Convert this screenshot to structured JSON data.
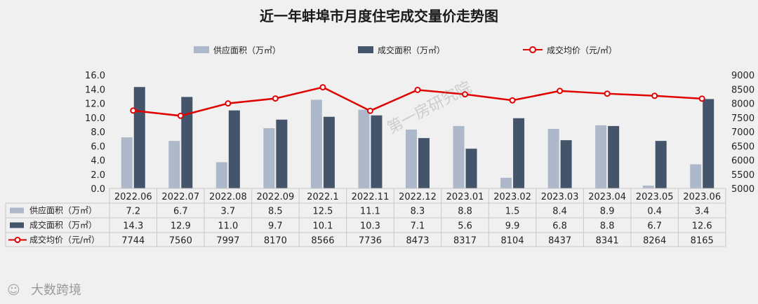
{
  "chart_data": {
    "type": "bar+line",
    "title": "近一年蚌埠市月度住宅成交量价走势图",
    "categories": [
      "2022.06",
      "2022.07",
      "2022.08",
      "2022.09",
      "2022.1",
      "2022.11",
      "2022.12",
      "2023.01",
      "2023.02",
      "2023.03",
      "2023.04",
      "2023.05",
      "2023.06"
    ],
    "series": [
      {
        "name": "供应面积（万㎡）",
        "kind": "bar",
        "axis": "left",
        "color": "#adb9ca",
        "values": [
          7.2,
          6.7,
          3.7,
          8.5,
          12.5,
          11.1,
          8.3,
          8.8,
          1.5,
          8.4,
          8.9,
          0.4,
          3.4
        ],
        "labels": [
          "7.2",
          "6.7",
          "3.7",
          "8.5",
          "12.5",
          "11.1",
          "8.3",
          "8.8",
          "1.5",
          "8.4",
          "8.9",
          "0.4",
          "3.4"
        ]
      },
      {
        "name": "成交面积（万㎡）",
        "kind": "bar",
        "axis": "left",
        "color": "#44546a",
        "values": [
          14.3,
          12.9,
          11.0,
          9.7,
          10.1,
          10.3,
          7.1,
          5.6,
          9.9,
          6.8,
          8.8,
          6.7,
          12.6
        ],
        "labels": [
          "14.3",
          "12.9",
          "11.0",
          "9.7",
          "10.1",
          "10.3",
          "7.1",
          "5.6",
          "9.9",
          "6.8",
          "8.8",
          "6.7",
          "12.6"
        ]
      },
      {
        "name": "成交均价（元/㎡）",
        "kind": "line",
        "axis": "right",
        "color": "#e00000",
        "values": [
          7744,
          7560,
          7997,
          8170,
          8566,
          7736,
          8473,
          8317,
          8104,
          8437,
          8341,
          8264,
          8165
        ],
        "labels": [
          "7744",
          "7560",
          "7997",
          "8170",
          "8566",
          "7736",
          "8473",
          "8317",
          "8104",
          "8437",
          "8341",
          "8264",
          "8165"
        ]
      }
    ],
    "left_axis": {
      "min": 0,
      "max": 16,
      "ticks": [
        "0.0",
        "2.0",
        "4.0",
        "6.0",
        "8.0",
        "10.0",
        "12.0",
        "14.0",
        "16.0"
      ]
    },
    "right_axis": {
      "min": 5000,
      "max": 9000,
      "ticks": [
        "5000",
        "5500",
        "6000",
        "6500",
        "7000",
        "7500",
        "8000",
        "8500",
        "9000"
      ]
    },
    "legend_position": "top",
    "grid": false,
    "data_table": true
  },
  "watermark": "第一房研究院",
  "brand": "大数跨境"
}
